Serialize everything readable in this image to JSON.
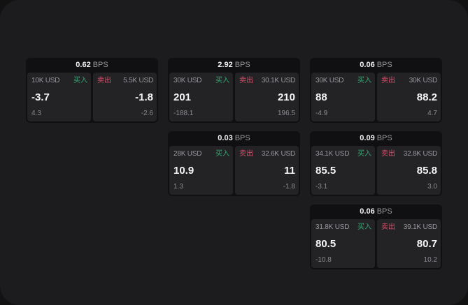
{
  "labels": {
    "bps_unit": "BPS",
    "buy": "买入",
    "sell": "卖出"
  },
  "colors": {
    "outer_bg": "#121212",
    "app_bg": "#1c1c1e",
    "card_bg": "#101012",
    "panel_bg": "#232326",
    "buy": "#35a873",
    "sell": "#d8506a",
    "value_text": "#f5f5f5",
    "muted_text": "#97979c",
    "sub_text": "#8b8b90"
  },
  "cards": [
    {
      "bps": "0.62",
      "buy": {
        "amount": "10K USD",
        "value": "-3.7",
        "sub": "4.3"
      },
      "sell": {
        "amount": "5.5K USD",
        "value": "-1.8",
        "sub": "-2.6"
      }
    },
    {
      "bps": "2.92",
      "buy": {
        "amount": "30K USD",
        "value": "201",
        "sub": "-188.1"
      },
      "sell": {
        "amount": "30.1K USD",
        "value": "210",
        "sub": "196.5"
      }
    },
    {
      "bps": "0.06",
      "buy": {
        "amount": "30K USD",
        "value": "88",
        "sub": "-4.9"
      },
      "sell": {
        "amount": "30K USD",
        "value": "88.2",
        "sub": "4.7"
      }
    },
    {
      "bps": "0.03",
      "buy": {
        "amount": "28K USD",
        "value": "10.9",
        "sub": "1.3"
      },
      "sell": {
        "amount": "32.6K USD",
        "value": "11",
        "sub": "-1.8"
      }
    },
    {
      "bps": "0.09",
      "buy": {
        "amount": "34.1K USD",
        "value": "85.5",
        "sub": "-3.1"
      },
      "sell": {
        "amount": "32.8K USD",
        "value": "85.8",
        "sub": "3.0"
      }
    },
    {
      "bps": "0.06",
      "buy": {
        "amount": "31.8K USD",
        "value": "80.5",
        "sub": "-10.8"
      },
      "sell": {
        "amount": "39.1K USD",
        "value": "80.7",
        "sub": "10.2"
      }
    }
  ]
}
